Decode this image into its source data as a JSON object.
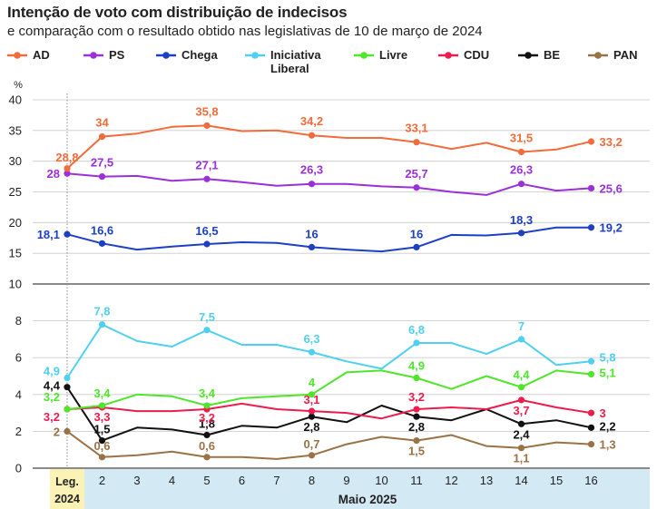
{
  "chart_data": {
    "type": "line",
    "title": "Intenção de voto com distribuição de indecisos",
    "subtitle": "e comparação com o resultado obtido nas legislativas de 10 de março de 2024",
    "ylabel": "%",
    "x_labels": [
      "Leg.\n2024",
      "2",
      "3",
      "4",
      "5",
      "6",
      "7",
      "8",
      "9",
      "10",
      "11",
      "12",
      "13",
      "14",
      "15",
      "16"
    ],
    "first_label_lines": [
      "Leg.",
      "2024"
    ],
    "xlabel": "Maio 2025",
    "upper_axis": {
      "range": [
        10,
        40
      ],
      "ticks": [
        "40",
        "35",
        "30",
        "25",
        "20",
        "15",
        "10"
      ]
    },
    "lower_axis": {
      "range": [
        0,
        10
      ],
      "ticks": [
        "8",
        "6",
        "4",
        "2",
        "0"
      ]
    },
    "series": [
      {
        "name": "AD",
        "panel": "upper",
        "color": "#f26b3a",
        "values": [
          28.8,
          34,
          34.5,
          35.6,
          35.8,
          34.9,
          35,
          34.2,
          33.8,
          33.8,
          33.1,
          32,
          33,
          31.5,
          31.9,
          33.2
        ],
        "labels": {
          "0": "28,8",
          "1": "34",
          "4": "35,8",
          "7": "34,2",
          "10": "33,1",
          "13": "31,5",
          "15": "33,2"
        }
      },
      {
        "name": "PS",
        "panel": "upper",
        "color": "#9b30d9",
        "values": [
          28,
          27.5,
          27.6,
          26.8,
          27.1,
          26.6,
          26,
          26.3,
          26.3,
          25.9,
          25.7,
          25,
          24.5,
          26.3,
          25.2,
          25.6
        ],
        "labels": {
          "0": "28",
          "1": "27,5",
          "4": "27,1",
          "7": "26,3",
          "10": "25,7",
          "13": "26,3",
          "15": "25,6"
        }
      },
      {
        "name": "Chega",
        "panel": "upper",
        "color": "#1c3fc4",
        "values": [
          18.1,
          16.6,
          15.6,
          16.1,
          16.5,
          16.8,
          16.7,
          16,
          15.6,
          15.3,
          16,
          18,
          17.9,
          18.3,
          19.2,
          19.2
        ],
        "labels": {
          "0": "18,1",
          "1": "16,6",
          "4": "16,5",
          "7": "16",
          "10": "16",
          "13": "18,3",
          "15": "19,2"
        }
      },
      {
        "name": "Iniciativa Liberal",
        "panel": "lower",
        "color": "#4fd0f0",
        "values": [
          4.9,
          7.8,
          6.9,
          6.6,
          7.5,
          6.7,
          6.7,
          6.3,
          5.8,
          5.4,
          6.8,
          6.8,
          6.2,
          7,
          5.6,
          5.8
        ],
        "labels": {
          "0": "4,9",
          "1": "7,8",
          "4": "7,5",
          "7": "6,3",
          "10": "6,8",
          "13": "7",
          "15": "5,8"
        }
      },
      {
        "name": "Livre",
        "panel": "lower",
        "color": "#4ee62a",
        "values": [
          3.2,
          3.4,
          4,
          3.9,
          3.4,
          3.8,
          3.9,
          4,
          5.2,
          5.3,
          4.9,
          4.3,
          5,
          4.4,
          5.3,
          5.1
        ],
        "labels": {
          "0": "3,2",
          "1": "3,4",
          "4": "3,4",
          "7": "4",
          "10": "4,9",
          "13": "4,4",
          "15": "5,1"
        }
      },
      {
        "name": "CDU",
        "panel": "lower",
        "color": "#ee1c4d",
        "values": [
          3.2,
          3.3,
          3.1,
          3.1,
          3.2,
          3.5,
          3.2,
          3.1,
          3,
          2.7,
          3.2,
          3.3,
          3.2,
          3.7,
          3.3,
          3
        ],
        "labels": {
          "0": "3,2",
          "1": "3,3",
          "4": "3,2",
          "7": "3,1",
          "10": "3,2",
          "13": "3,7",
          "15": "3"
        }
      },
      {
        "name": "BE",
        "panel": "lower",
        "color": "#111111",
        "values": [
          4.4,
          1.5,
          2.2,
          2.1,
          1.8,
          2.3,
          2.2,
          2.8,
          2.5,
          3.4,
          2.8,
          2.6,
          3.2,
          2.4,
          2.6,
          2.2
        ],
        "labels": {
          "0": "4,4",
          "1": "1,5",
          "4": "1,8",
          "7": "2,8",
          "10": "2,8",
          "13": "2,4",
          "15": "2,2"
        }
      },
      {
        "name": "PAN",
        "panel": "lower",
        "color": "#9b7246",
        "values": [
          2,
          0.6,
          0.7,
          0.9,
          0.6,
          0.6,
          0.5,
          0.7,
          1.3,
          1.7,
          1.5,
          1.8,
          1.2,
          1.1,
          1.4,
          1.3
        ],
        "labels": {
          "0": "2",
          "1": "0,6",
          "4": "0,6",
          "7": "0,7",
          "10": "1,5",
          "13": "1,1",
          "15": "1,3"
        }
      }
    ],
    "legend": [
      {
        "label": "AD",
        "color": "#f26b3a"
      },
      {
        "label": "PS",
        "color": "#9b30d9"
      },
      {
        "label": "Chega",
        "color": "#1c3fc4"
      },
      {
        "label_lines": [
          "Iniciativa",
          "Liberal"
        ],
        "color": "#4fd0f0"
      },
      {
        "label": "Livre",
        "color": "#4ee62a"
      },
      {
        "label": "CDU",
        "color": "#ee1c4d"
      },
      {
        "label": "BE",
        "color": "#111111"
      },
      {
        "label": "PAN",
        "color": "#9b7246"
      }
    ]
  }
}
